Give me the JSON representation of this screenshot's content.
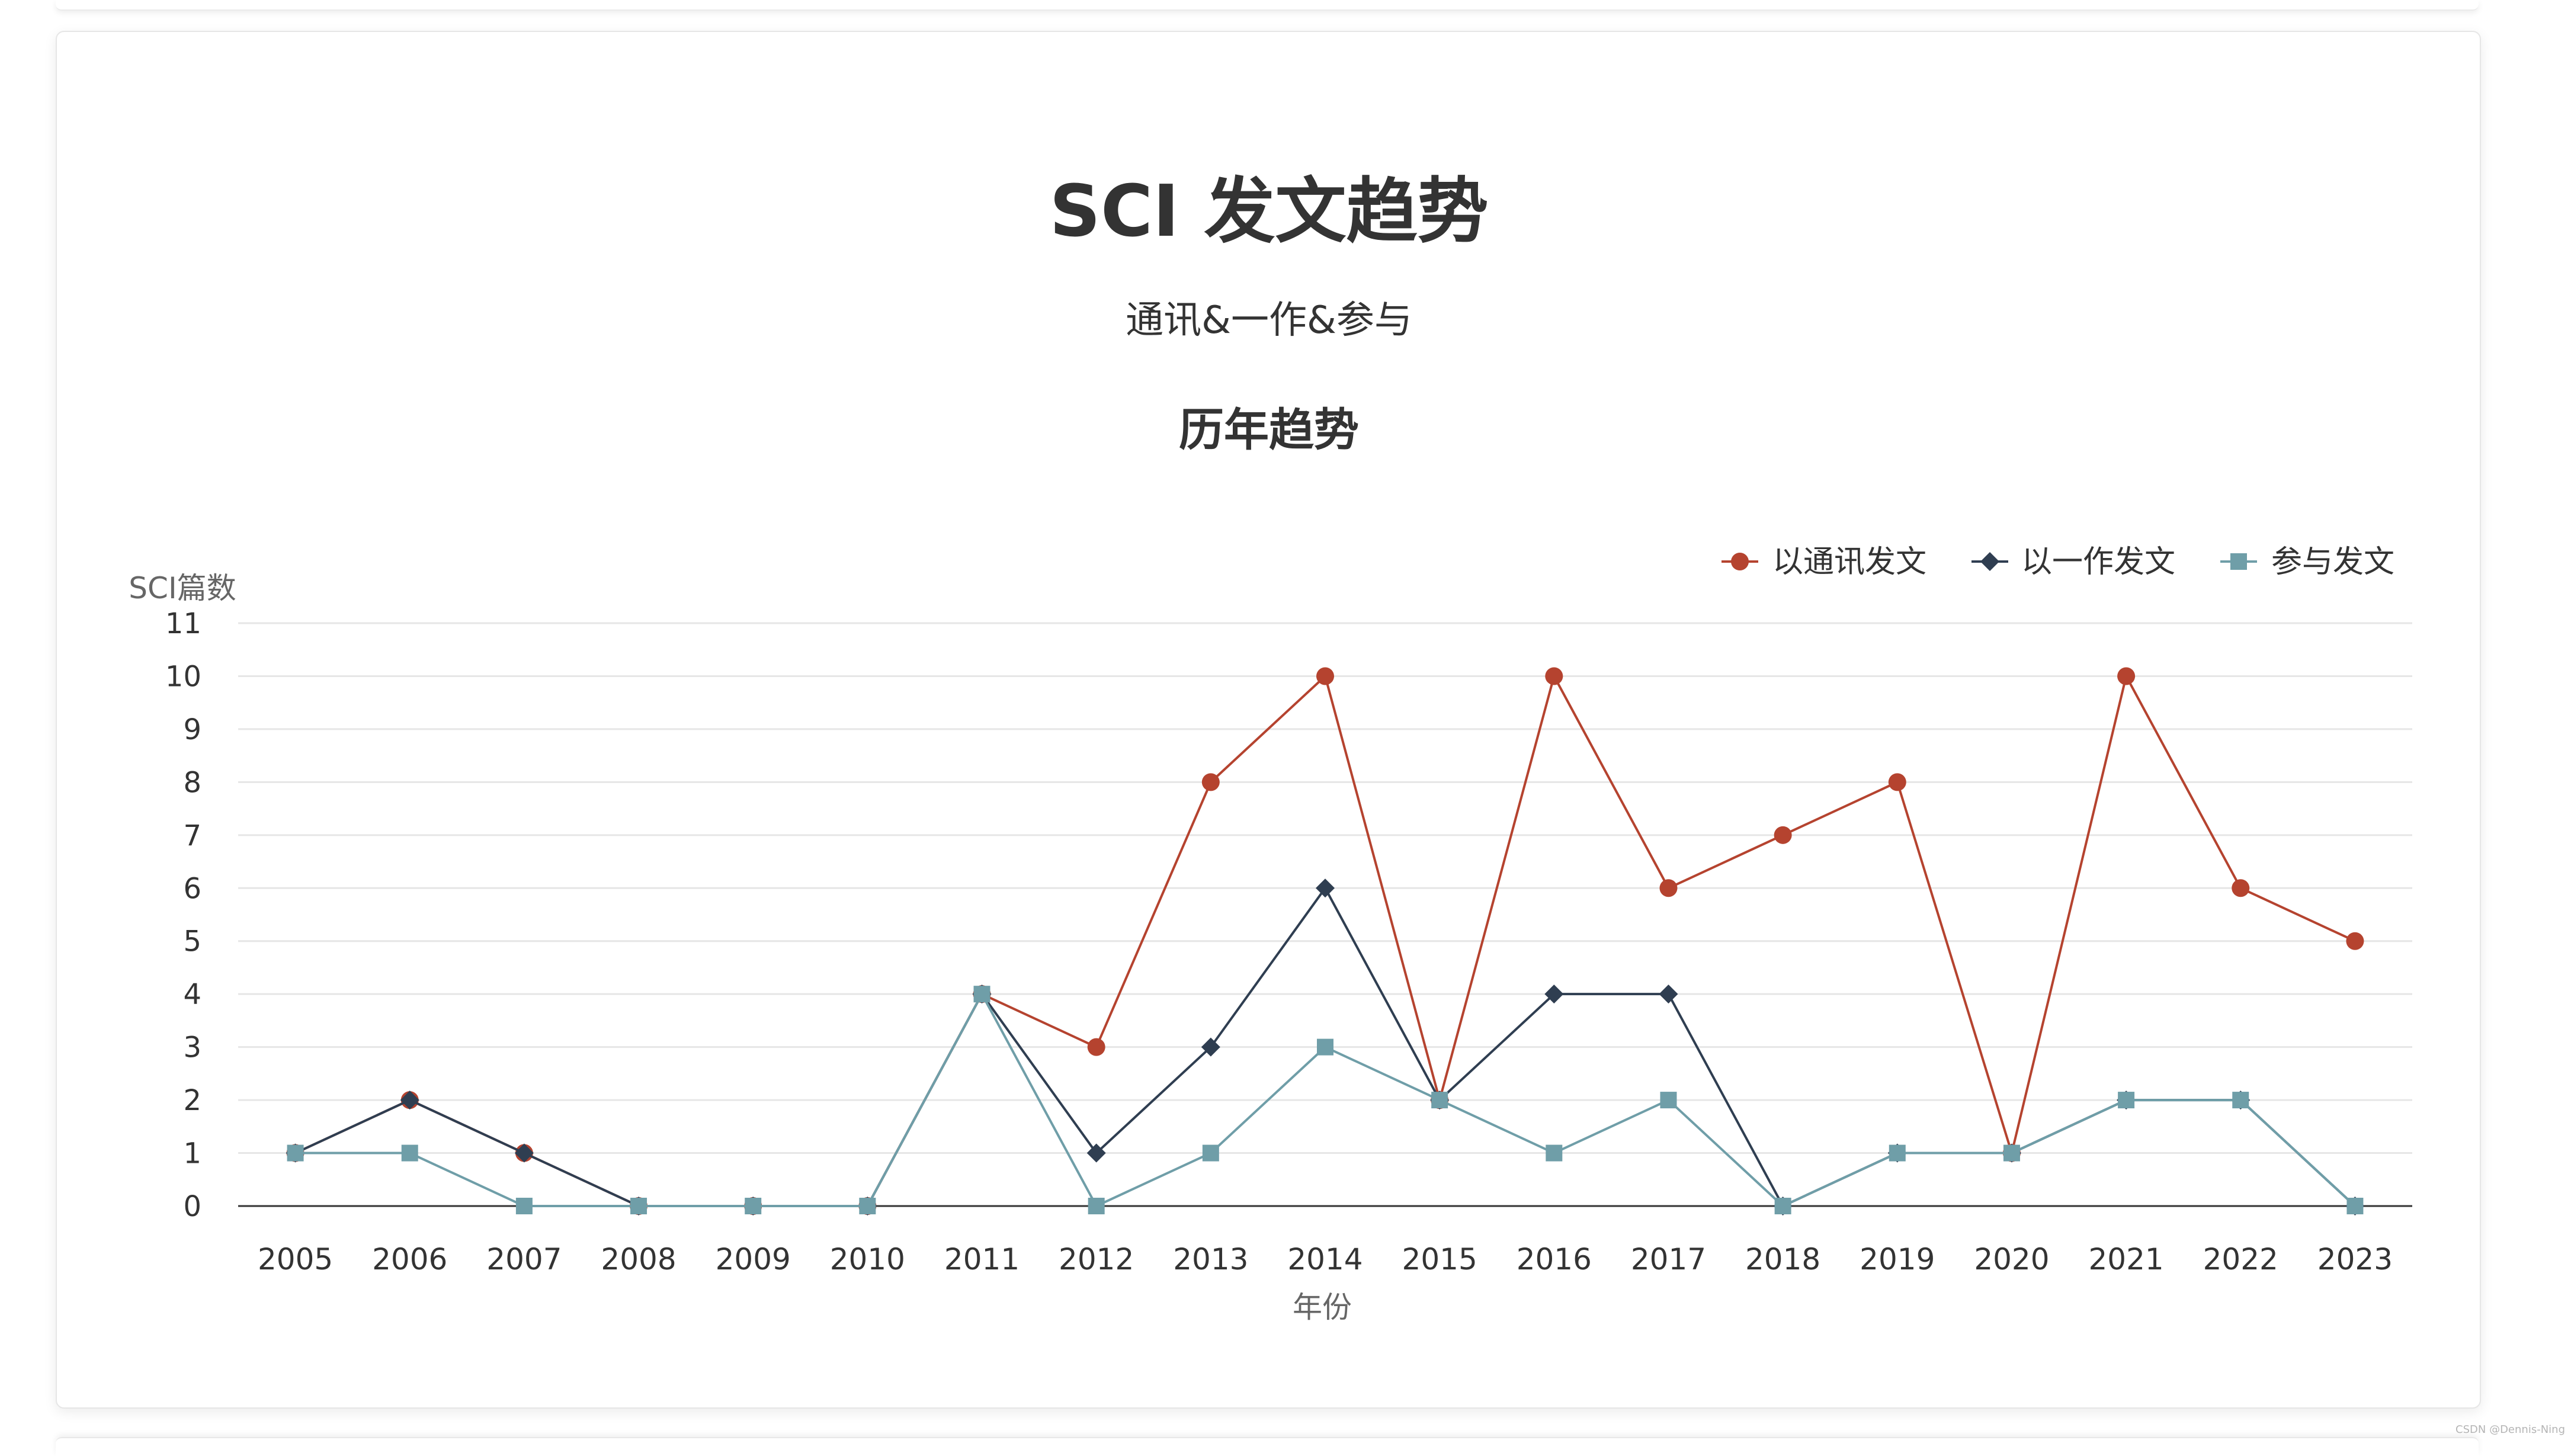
{
  "page": {
    "watermark": "CSDN @Dennis-Ning"
  },
  "chart_data": {
    "type": "line",
    "title": "SCI 发文趋势",
    "subtitle": "通讯&一作&参与",
    "subsubtitle": "历年趋势",
    "xlabel": "年份",
    "ylabel": "SCI篇数",
    "ylim": [
      0,
      11
    ],
    "yticks": [
      0,
      1,
      2,
      3,
      4,
      5,
      6,
      7,
      8,
      9,
      10,
      11
    ],
    "grid": true,
    "legend_position": "top-right",
    "categories": [
      "2005",
      "2006",
      "2007",
      "2008",
      "2009",
      "2010",
      "2011",
      "2012",
      "2013",
      "2014",
      "2015",
      "2016",
      "2017",
      "2018",
      "2019",
      "2020",
      "2021",
      "2022",
      "2023"
    ],
    "series": [
      {
        "name": "以通讯发文",
        "color": "#b5432f",
        "marker": "circle",
        "values": [
          1,
          2,
          1,
          0,
          0,
          0,
          4,
          3,
          8,
          10,
          2,
          10,
          6,
          7,
          8,
          1,
          10,
          6,
          5
        ]
      },
      {
        "name": "以一作发文",
        "color": "#2f3e51",
        "marker": "diamond",
        "values": [
          1,
          2,
          1,
          0,
          0,
          0,
          4,
          1,
          3,
          6,
          2,
          4,
          4,
          0,
          1,
          1,
          2,
          2,
          0
        ]
      },
      {
        "name": "参与发文",
        "color": "#6f9ea8",
        "marker": "square",
        "values": [
          1,
          1,
          0,
          0,
          0,
          0,
          4,
          0,
          1,
          3,
          2,
          1,
          2,
          0,
          1,
          1,
          2,
          2,
          0
        ]
      }
    ]
  }
}
